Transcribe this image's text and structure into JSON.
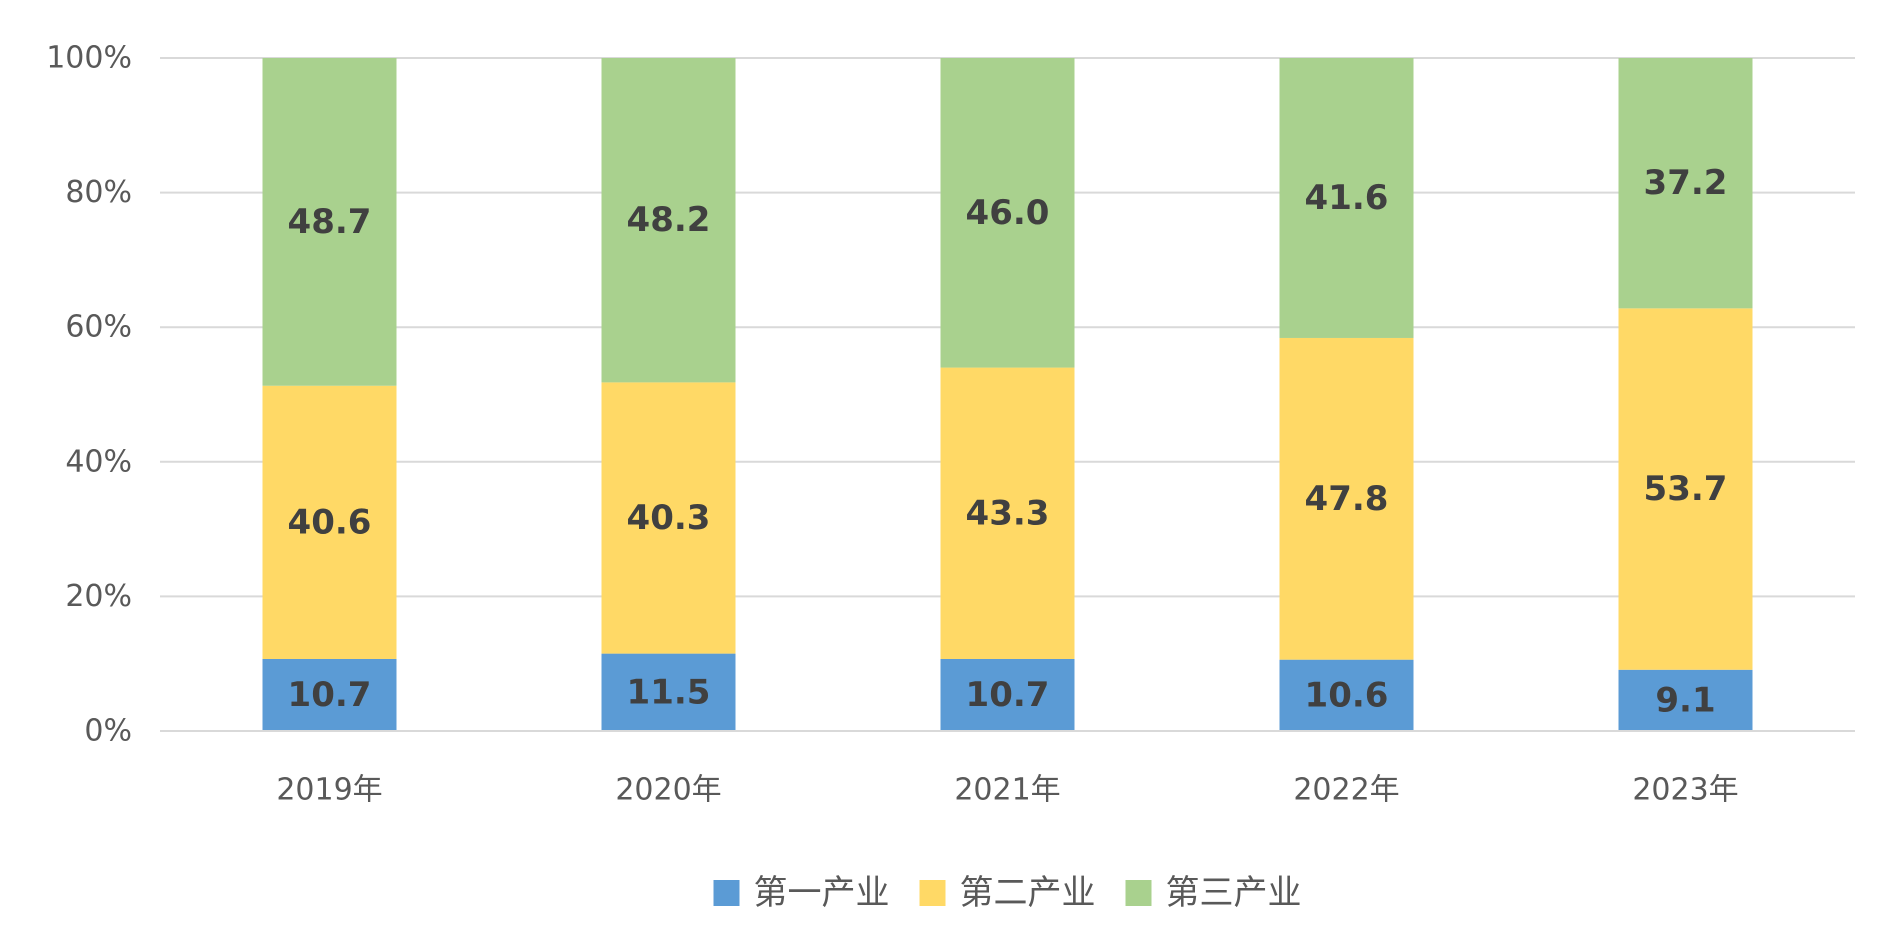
{
  "chart_data": {
    "type": "bar",
    "stacked": "percent",
    "categories": [
      "2019年",
      "2020年",
      "2021年",
      "2022年",
      "2023年"
    ],
    "series": [
      {
        "name": "第一产业",
        "color": "#5B9BD5",
        "values": [
          10.7,
          11.5,
          10.7,
          10.6,
          9.1
        ]
      },
      {
        "name": "第二产业",
        "color": "#FFD966",
        "values": [
          40.6,
          40.3,
          43.3,
          47.8,
          53.7
        ]
      },
      {
        "name": "第三产业",
        "color": "#A9D18E",
        "values": [
          48.7,
          48.2,
          46.0,
          41.6,
          37.2
        ]
      }
    ],
    "y_ticks": [
      "0%",
      "20%",
      "40%",
      "60%",
      "80%",
      "100%"
    ],
    "ylim": [
      0,
      100
    ],
    "grid": true,
    "legend_position": "bottom"
  }
}
